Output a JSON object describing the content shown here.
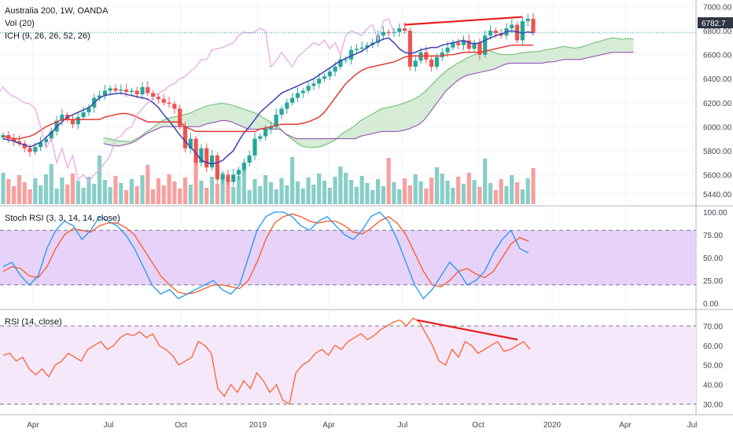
{
  "header": {
    "title": "Australia 200, 1W, OANDA",
    "vol_label": "Vol (20)",
    "ich_label": "ICH (9, 26, 26, 52, 26)",
    "stoch_label": "Stoch RSI (3, 3, 14, 14, close)",
    "rsi_label": "RSI (14, close)",
    "current_price": "6782.7"
  },
  "colors": {
    "up": "#26a69a",
    "down": "#ef5350",
    "conversion": "#3f3fb4",
    "base": "#e53935",
    "lagging": "#e8a9e8",
    "kumo_up": "#c8e6c9",
    "kumo_down": "#f8d0d0",
    "stoch_k": "#2196f3",
    "stoch_d": "#ff5722",
    "stoch_band": "#e1c7f7",
    "rsi_line": "#ff5722",
    "rsi_band": "#f3e5f9",
    "divergence": "#e91e1e"
  },
  "chart_data": [
    {
      "type": "candlestick",
      "name": "Australia 200",
      "yaxis_ticks": [
        7000,
        6800,
        6600,
        6400,
        6200,
        6000,
        5800,
        5600,
        5440
      ],
      "xaxis_ticks": [
        "Apr",
        "Jul",
        "Oct",
        "2019",
        "Apr",
        "Jul",
        "Oct",
        "2020",
        "Apr",
        "Jul"
      ],
      "closes": [
        5930,
        5900,
        5880,
        5860,
        5820,
        5790,
        5830,
        5870,
        5900,
        5960,
        6050,
        6100,
        6060,
        6020,
        6080,
        6120,
        6160,
        6240,
        6260,
        6300,
        6320,
        6300,
        6310,
        6290,
        6300,
        6270,
        6330,
        6280,
        6250,
        6230,
        6200,
        6190,
        6150,
        6000,
        5820,
        5900,
        5700,
        5820,
        5660,
        5760,
        5560,
        5600,
        5540,
        5600,
        5640,
        5700,
        5760,
        5900,
        5920,
        5980,
        6000,
        6100,
        6150,
        6200,
        6240,
        6280,
        6300,
        6340,
        6360,
        6400,
        6420,
        6460,
        6500,
        6560,
        6560,
        6640,
        6650,
        6660,
        6680,
        6700,
        6760,
        6790,
        6780,
        6790,
        6820,
        6800,
        6500,
        6550,
        6620,
        6560,
        6500,
        6580,
        6620,
        6660,
        6700,
        6680,
        6720,
        6650,
        6700,
        6600,
        6760,
        6800,
        6780,
        6760,
        6820,
        6850,
        6720,
        6880,
        6900,
        6782
      ],
      "ichimoku_conversion": [
        5900,
        5890,
        5880,
        5860,
        5850,
        5830,
        5850,
        5870,
        5910,
        5950,
        6000,
        6040,
        6080,
        6100,
        6120,
        6140,
        6160,
        6200,
        6240,
        6260,
        6270,
        6275,
        6280,
        6270,
        6260,
        6250,
        6240,
        6230,
        6200,
        6160,
        6100,
        6050,
        5990,
        5930,
        5880,
        5830,
        5780,
        5720,
        5700,
        5690,
        5700,
        5720,
        5760,
        5800,
        5880,
        5950,
        6000,
        6060,
        6120,
        6160,
        6200,
        6240,
        6280,
        6300,
        6320,
        6340,
        6360,
        6380,
        6400,
        6430,
        6460,
        6490,
        6520,
        6550,
        6570,
        6590,
        6610,
        6630,
        6660,
        6690,
        6710,
        6730,
        6740,
        6700,
        6650,
        6620,
        6610,
        6620,
        6640,
        6650,
        6660,
        6660,
        6680,
        6690,
        6700,
        6710,
        6720,
        6700,
        6690,
        6700,
        6720,
        6740,
        6760,
        6770,
        6790,
        6800,
        6790,
        6780,
        6790,
        6782
      ],
      "ichimoku_base": [
        5920,
        5910,
        5900,
        5900,
        5910,
        5920,
        5940,
        5970,
        6000,
        6020,
        6040,
        6060,
        6060,
        6060,
        6060,
        6060,
        6060,
        6060,
        6060,
        6080,
        6090,
        6100,
        6110,
        6110,
        6100,
        6080,
        6060,
        6040,
        6040,
        6040,
        6040,
        6040,
        6040,
        6040,
        6000,
        5980,
        5960,
        5960,
        5960,
        5960,
        5960,
        5960,
        5960,
        5960,
        5960,
        5960,
        5960,
        5960,
        5980,
        5990,
        6000,
        6010,
        6020,
        6020,
        6020,
        6020,
        6030,
        6040,
        6060,
        6080,
        6120,
        6180,
        6240,
        6300,
        6360,
        6400,
        6440,
        6470,
        6490,
        6500,
        6510,
        6520,
        6530,
        6540,
        6560,
        6580,
        6590,
        6590,
        6590,
        6590,
        6590,
        6590,
        6590,
        6600,
        6600,
        6610,
        6620,
        6620,
        6620,
        6620,
        6630,
        6640,
        6650,
        6660,
        6670,
        6680,
        6680,
        6680,
        6680,
        6680
      ]
    },
    {
      "type": "line",
      "name": "Stoch RSI",
      "yaxis_ticks": [
        100,
        75,
        50,
        25,
        0
      ],
      "bands": [
        80,
        20
      ],
      "k": [
        40,
        45,
        30,
        20,
        30,
        60,
        80,
        90,
        85,
        70,
        80,
        95,
        90,
        85,
        75,
        60,
        40,
        20,
        10,
        15,
        5,
        10,
        15,
        20,
        25,
        15,
        10,
        20,
        50,
        80,
        95,
        100,
        100,
        95,
        85,
        80,
        90,
        95,
        85,
        75,
        70,
        80,
        95,
        100,
        90,
        70,
        45,
        20,
        5,
        15,
        30,
        45,
        35,
        20,
        25,
        35,
        55,
        70,
        80,
        60,
        55
      ],
      "d": [
        35,
        40,
        38,
        30,
        28,
        40,
        60,
        75,
        82,
        80,
        78,
        85,
        88,
        88,
        83,
        75,
        60,
        45,
        30,
        20,
        12,
        10,
        12,
        16,
        20,
        20,
        18,
        16,
        25,
        45,
        70,
        88,
        95,
        98,
        95,
        90,
        88,
        90,
        90,
        85,
        78,
        76,
        82,
        90,
        95,
        88,
        75,
        55,
        35,
        20,
        18,
        25,
        35,
        38,
        32,
        28,
        35,
        50,
        65,
        72,
        68
      ]
    },
    {
      "type": "line",
      "name": "RSI",
      "yaxis_ticks": [
        70,
        60,
        50,
        40,
        30
      ],
      "bands": [
        70,
        30
      ],
      "values": [
        55,
        56,
        52,
        54,
        48,
        45,
        48,
        44,
        50,
        52,
        56,
        54,
        52,
        58,
        60,
        62,
        58,
        60,
        64,
        66,
        65,
        67,
        64,
        66,
        60,
        58,
        55,
        50,
        52,
        54,
        62,
        60,
        56,
        38,
        34,
        40,
        36,
        42,
        38,
        46,
        42,
        36,
        40,
        32,
        30,
        46,
        50,
        52,
        56,
        58,
        55,
        60,
        58,
        62,
        64,
        66,
        63,
        65,
        68,
        70,
        72,
        73,
        70,
        74,
        72,
        66,
        60,
        52,
        50,
        58,
        54,
        62,
        60,
        56,
        58,
        60,
        62,
        57,
        58,
        60,
        62,
        58
      ]
    }
  ]
}
